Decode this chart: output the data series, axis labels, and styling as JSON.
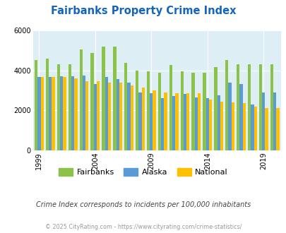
{
  "title": "Fairbanks Property Crime Index",
  "years": [
    1999,
    2000,
    2001,
    2002,
    2003,
    2004,
    2005,
    2006,
    2007,
    2008,
    2009,
    2010,
    2011,
    2012,
    2013,
    2014,
    2015,
    2016,
    2017,
    2018,
    2019,
    2020
  ],
  "fairbanks": [
    4500,
    4600,
    4300,
    4300,
    5050,
    4850,
    5200,
    5200,
    4380,
    3970,
    3950,
    3870,
    4250,
    3950,
    3870,
    3870,
    4150,
    4500,
    4300,
    4300,
    4300,
    4300
  ],
  "alaska": [
    3650,
    3650,
    3700,
    3700,
    3750,
    3300,
    3650,
    3550,
    3380,
    2890,
    2870,
    2600,
    2730,
    2820,
    2650,
    2620,
    2750,
    3380,
    3320,
    2280,
    2900,
    2900
  ],
  "national": [
    3650,
    3650,
    3650,
    3600,
    3450,
    3450,
    3380,
    3380,
    3250,
    3120,
    3000,
    2900,
    2870,
    2870,
    2850,
    2540,
    2430,
    2400,
    2350,
    2170,
    2100,
    2100
  ],
  "fairbanks_color": "#8bc34a",
  "alaska_color": "#5b9bd5",
  "national_color": "#ffc000",
  "bg_color": "#ddeef5",
  "ylim": [
    0,
    6000
  ],
  "ylabel_ticks": [
    0,
    2000,
    4000,
    6000
  ],
  "xtick_years": [
    1999,
    2004,
    2009,
    2014,
    2019
  ],
  "subtitle": "Crime Index corresponds to incidents per 100,000 inhabitants",
  "footer": "© 2025 CityRating.com - https://www.cityrating.com/crime-statistics/",
  "title_color": "#1565c0",
  "subtitle_color": "#444444",
  "footer_color": "#999999"
}
